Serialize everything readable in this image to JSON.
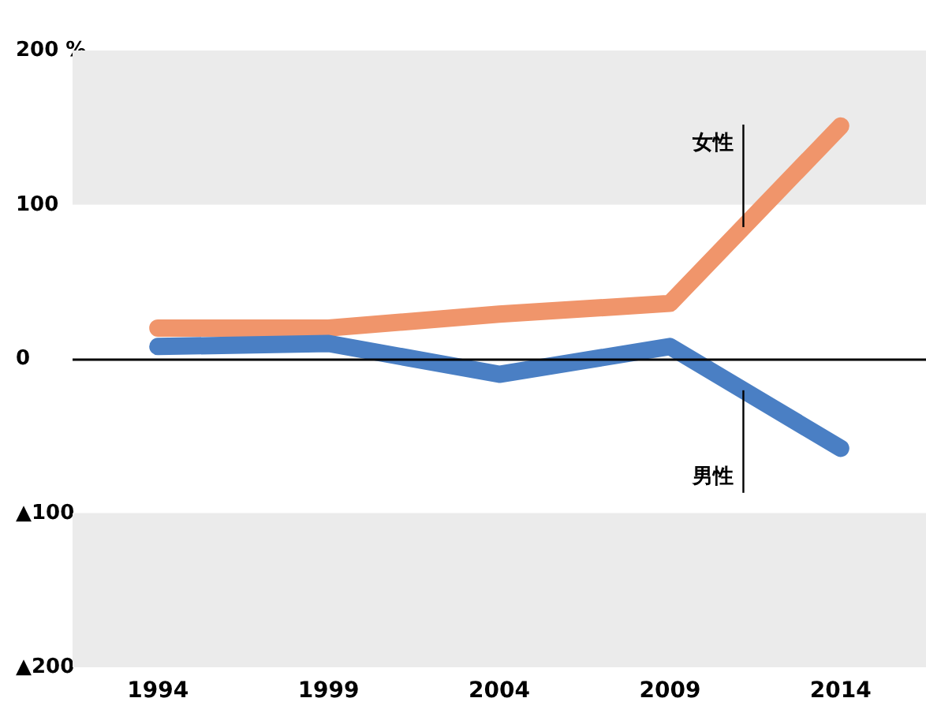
{
  "chart_data": {
    "type": "line",
    "categories": [
      "1994",
      "1999",
      "2004",
      "2009",
      "2014"
    ],
    "series": [
      {
        "name": "女性",
        "color": "#f0956b",
        "values": [
          20,
          20,
          29,
          36,
          151
        ]
      },
      {
        "name": "男性",
        "color": "#4a7fc4",
        "values": [
          8,
          10,
          -10,
          8,
          -58
        ]
      }
    ],
    "ylim": [
      -200,
      200
    ],
    "yticks": [
      {
        "value": -200,
        "label": "▲200"
      },
      {
        "value": -100,
        "label": "▲100"
      },
      0,
      100,
      {
        "value": 200,
        "label": "200 %"
      }
    ],
    "bands": [
      {
        "axis": "y",
        "from": 100,
        "to": 200,
        "color": "#ebebeb"
      },
      {
        "axis": "y",
        "from": -200,
        "to": -100,
        "color": "#ebebeb"
      }
    ],
    "ref_lines": [
      {
        "axis": "y",
        "value": 0,
        "color": "#000000"
      }
    ],
    "grid": false,
    "legend": false,
    "line_style": "solid"
  }
}
